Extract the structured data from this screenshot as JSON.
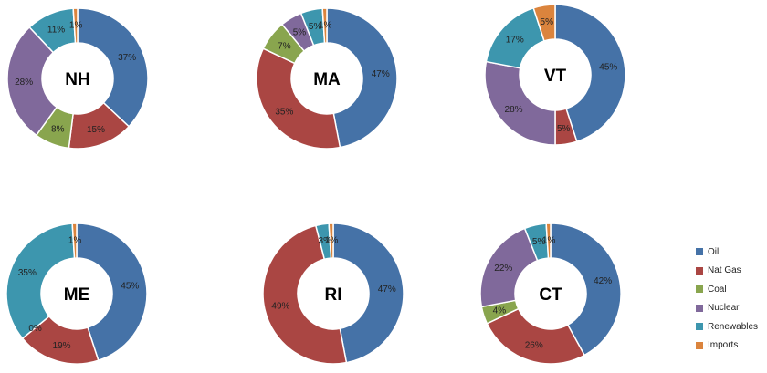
{
  "chart_data": {
    "type": "pie",
    "categories": [
      "Oil",
      "Nat Gas",
      "Coal",
      "Nuclear",
      "Renewables",
      "Imports"
    ],
    "colors": [
      "#4572A7",
      "#AA4643",
      "#89A54E",
      "#80699B",
      "#3D96AE",
      "#DB843D"
    ],
    "legend_position": "right",
    "charts": [
      {
        "label": "NH",
        "values": [
          37,
          15,
          8,
          28,
          11,
          1
        ],
        "labels": [
          "37%",
          "15%",
          "8%",
          "28%",
          "11%",
          "1%"
        ]
      },
      {
        "label": "MA",
        "values": [
          47,
          35,
          7,
          5,
          5,
          1
        ],
        "labels": [
          "47%",
          "35%",
          "7%",
          "5%",
          "5%",
          "1%"
        ]
      },
      {
        "label": "VT",
        "values": [
          45,
          5,
          0,
          28,
          17,
          5
        ],
        "labels": [
          "45%",
          "5%",
          "",
          "28%",
          "17%",
          "5%"
        ]
      },
      {
        "label": "ME",
        "values": [
          45,
          19,
          0,
          0,
          35,
          1
        ],
        "labels": [
          "45%",
          "19%",
          "0%",
          "",
          "35%",
          "1%"
        ]
      },
      {
        "label": "RI",
        "values": [
          47,
          49,
          0,
          0,
          3,
          1
        ],
        "labels": [
          "47%",
          "49%",
          "",
          "",
          "3%",
          "1%"
        ]
      },
      {
        "label": "CT",
        "values": [
          42,
          26,
          4,
          22,
          5,
          1
        ],
        "labels": [
          "42%",
          "26%",
          "4%",
          "22%",
          "5%",
          "1%"
        ]
      }
    ]
  }
}
